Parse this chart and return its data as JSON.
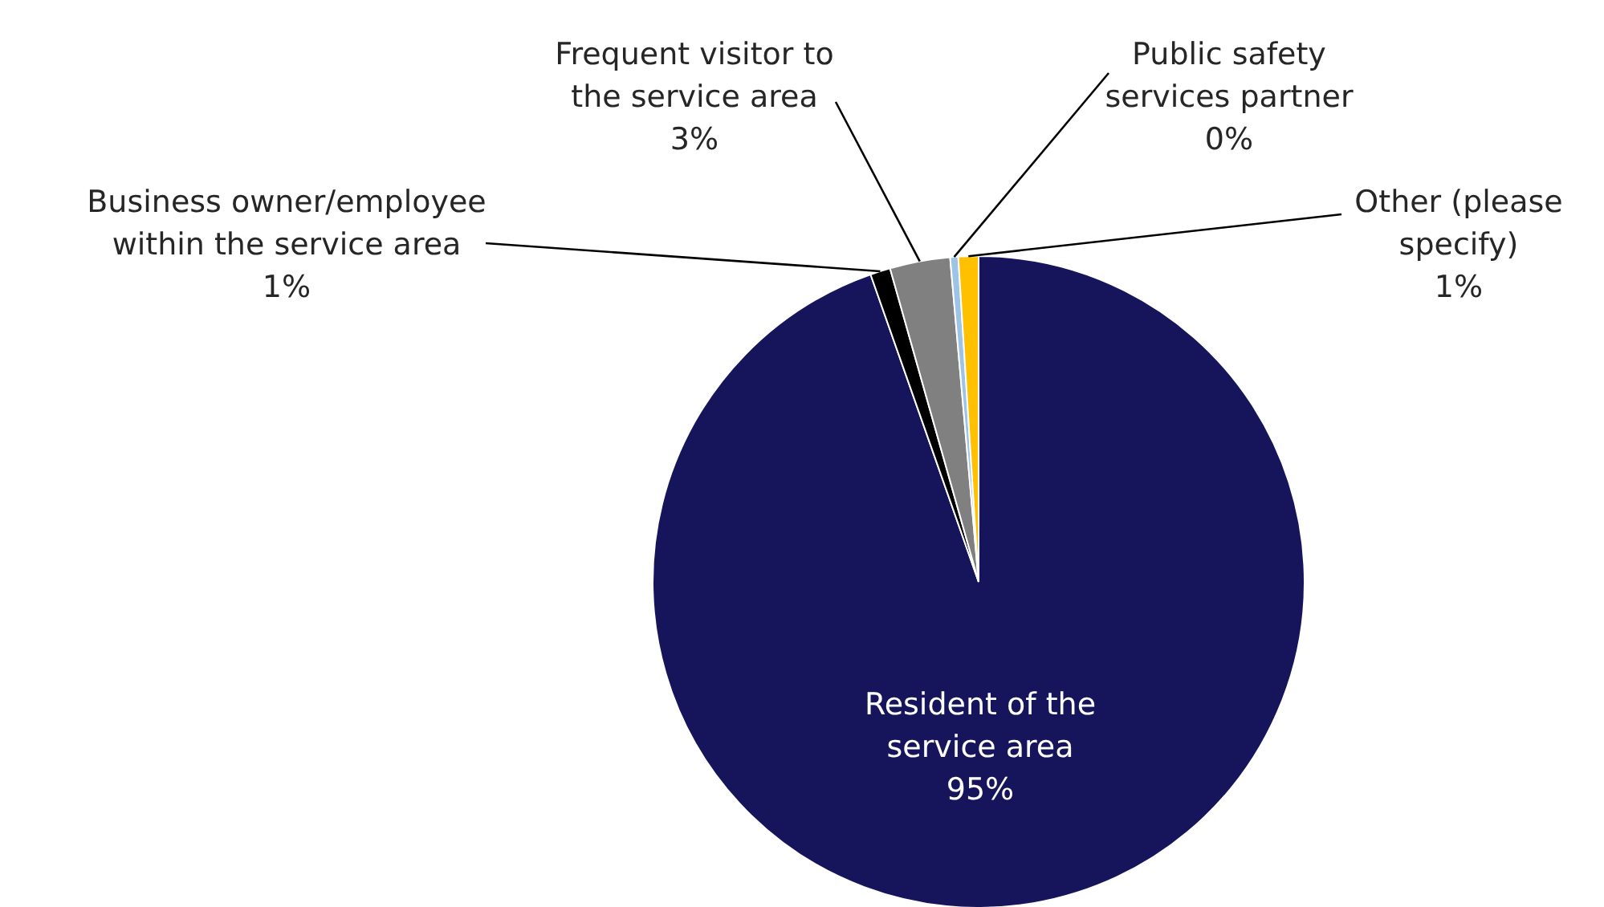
{
  "chart_data": {
    "type": "pie",
    "categories": [
      "Resident of the service area",
      "Business owner/employee within the service area",
      "Frequent visitor to the service area",
      "Public safety services partner",
      "Other (please specify)"
    ],
    "values": [
      95,
      1,
      3,
      0.4,
      1
    ],
    "value_labels": [
      "95%",
      "1%",
      "3%",
      "0%",
      "1%"
    ],
    "colors": [
      "#16155c",
      "#000000",
      "#808080",
      "#9dc3e6",
      "#ffc000"
    ]
  }
}
